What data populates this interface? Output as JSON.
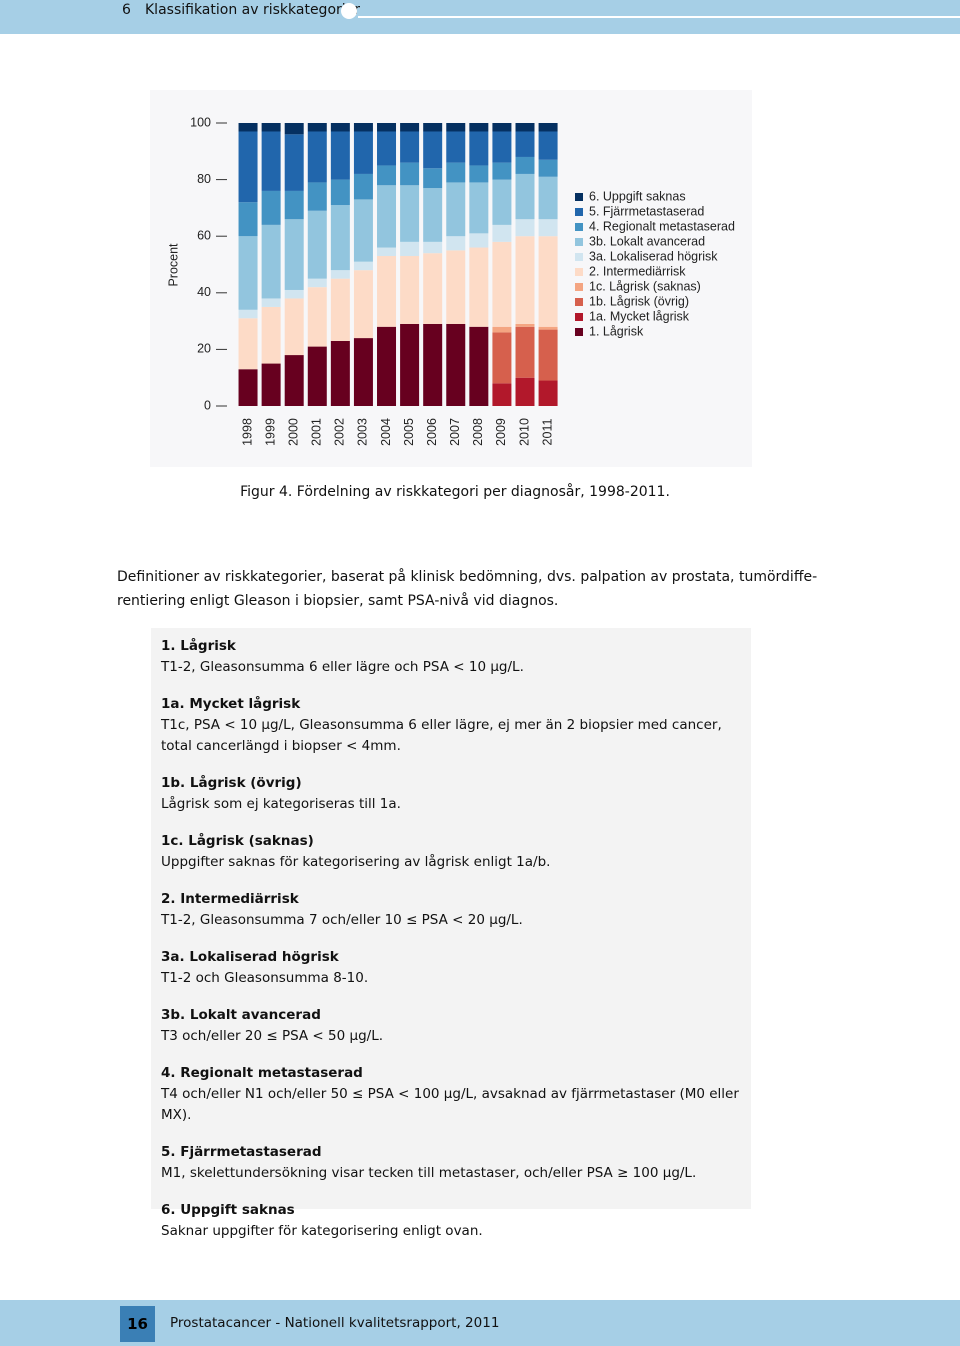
{
  "header": {
    "section_number": "6",
    "section_title": "Klassifikation av riskkategorier"
  },
  "chart_data": {
    "type": "stacked_bar",
    "y_label": "Procent",
    "caption": "Figur 4. Fördelning av riskkategori per diagnosår, 1998-2011.",
    "categories": [
      "1998",
      "1999",
      "2000",
      "2001",
      "2002",
      "2003",
      "2004",
      "2005",
      "2006",
      "2007",
      "2008",
      "2009",
      "2010",
      "2011"
    ],
    "ylim": [
      0,
      100
    ],
    "yticks": [
      0,
      20,
      40,
      60,
      80,
      100
    ],
    "legend": "right",
    "series": [
      {
        "name": "1. Lågrisk",
        "color": "#67001f",
        "values": [
          13,
          15,
          18,
          21,
          23,
          24,
          28,
          29,
          29,
          29,
          28,
          0,
          0,
          0
        ]
      },
      {
        "name": "1a. Mycket lågrisk",
        "color": "#b2182b",
        "values": [
          0,
          0,
          0,
          0,
          0,
          0,
          0,
          0,
          0,
          0,
          0,
          8,
          10,
          9
        ]
      },
      {
        "name": "1b. Lågrisk (övrig)",
        "color": "#d6604d",
        "values": [
          0,
          0,
          0,
          0,
          0,
          0,
          0,
          0,
          0,
          0,
          0,
          18,
          18,
          18
        ]
      },
      {
        "name": "1c. Lågrisk (saknas)",
        "color": "#f4a582",
        "values": [
          0,
          0,
          0,
          0,
          0,
          0,
          0,
          0,
          0,
          0,
          0,
          2,
          1,
          1
        ]
      },
      {
        "name": "2. Intermediärrisk",
        "color": "#fddbc7",
        "values": [
          18,
          20,
          20,
          21,
          22,
          24,
          25,
          24,
          25,
          26,
          28,
          30,
          31,
          32
        ]
      },
      {
        "name": "3a. Lokaliserad högrisk",
        "color": "#d1e5f0",
        "values": [
          3,
          3,
          3,
          3,
          3,
          3,
          3,
          5,
          4,
          5,
          5,
          6,
          6,
          6
        ]
      },
      {
        "name": "3b. Lokalt avancerad",
        "color": "#92c5de",
        "values": [
          26,
          26,
          25,
          24,
          23,
          22,
          22,
          20,
          19,
          19,
          18,
          16,
          16,
          15
        ]
      },
      {
        "name": "4. Regionalt metastaserad",
        "color": "#4393c3",
        "values": [
          12,
          12,
          10,
          10,
          9,
          9,
          7,
          8,
          7,
          7,
          6,
          6,
          6,
          6
        ]
      },
      {
        "name": "5. Fjärrmetastaserad",
        "color": "#2166ac",
        "values": [
          25,
          21,
          20,
          18,
          17,
          15,
          12,
          11,
          13,
          11,
          12,
          11,
          9,
          10
        ]
      },
      {
        "name": "6. Uppgift saknas",
        "color": "#053061",
        "values": [
          3,
          3,
          4,
          3,
          3,
          3,
          3,
          3,
          3,
          3,
          3,
          3,
          3,
          3
        ]
      }
    ]
  },
  "intro": [
    "Definitioner av riskkategorier, baserat på klinisk bedömning, dvs. palpation av prostata, tumördiffe-",
    "rentiering enligt Gleason i biopsier, samt PSA-nivå vid diagnos."
  ],
  "definitions": [
    {
      "title": "1. Lågrisk",
      "text": "T1-2, Gleasonsumma 6 eller lägre och PSA < 10 μg/L."
    },
    {
      "title": "1a. Mycket lågrisk",
      "text": "T1c, PSA < 10 μg/L, Gleasonsumma 6 eller lägre, ej mer än 2 biopsier med cancer, total cancerlängd i biopser < 4mm."
    },
    {
      "title": "1b. Lågrisk (övrig)",
      "text": "Lågrisk som ej kategoriseras till 1a."
    },
    {
      "title": "1c. Lågrisk (saknas)",
      "text": "Uppgifter saknas för kategorisering av lågrisk enligt 1a/b."
    },
    {
      "title": "2. Intermediärrisk",
      "text": "T1-2, Gleasonsumma 7 och/eller 10 ≤ PSA < 20 μg/L."
    },
    {
      "title": "3a. Lokaliserad högrisk",
      "text": "T1-2 och Gleasonsumma 8-10."
    },
    {
      "title": "3b. Lokalt avancerad",
      "text": "T3 och/eller 20 ≤ PSA < 50 μg/L."
    },
    {
      "title": "4. Regionalt metastaserad",
      "text": "T4 och/eller N1 och/eller 50 ≤ PSA < 100 μg/L, avsaknad av fjärrmetastaser (M0 eller MX)."
    },
    {
      "title": "5. Fjärrmetastaserad",
      "text": "M1, skelettundersökning visar tecken till metastaser, och/eller PSA ≥ 100 μg/L."
    },
    {
      "title": "6. Uppgift saknas",
      "text": "Saknar uppgifter för kategorisering enligt ovan."
    }
  ],
  "footer": {
    "page_number": "16",
    "text": "Prostatacancer - Nationell kvalitetsrapport, 2011"
  }
}
